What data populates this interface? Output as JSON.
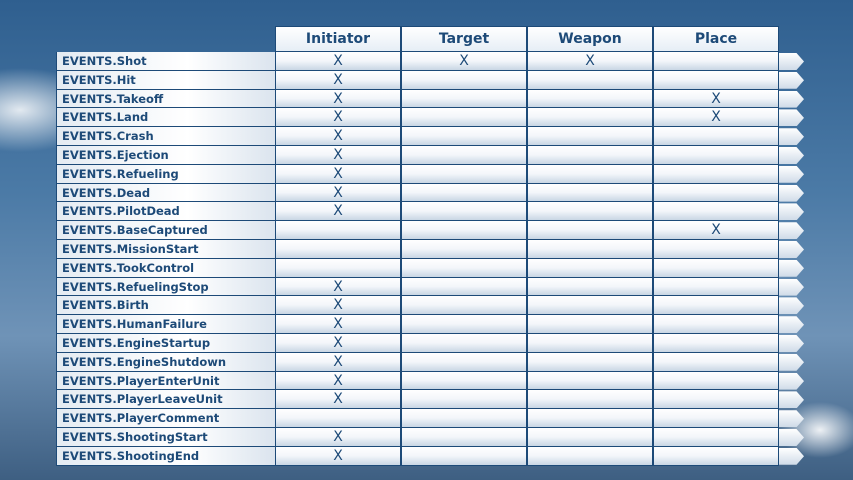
{
  "columns": [
    "Initiator",
    "Target",
    "Weapon",
    "Place"
  ],
  "mark": "X",
  "rows": [
    {
      "event": "EVENTS.Shot",
      "marks": [
        true,
        true,
        true,
        false
      ]
    },
    {
      "event": "EVENTS.Hit",
      "marks": [
        true,
        false,
        false,
        false
      ]
    },
    {
      "event": "EVENTS.Takeoff",
      "marks": [
        true,
        false,
        false,
        true
      ]
    },
    {
      "event": "EVENTS.Land",
      "marks": [
        true,
        false,
        false,
        true
      ]
    },
    {
      "event": "EVENTS.Crash",
      "marks": [
        true,
        false,
        false,
        false
      ]
    },
    {
      "event": "EVENTS.Ejection",
      "marks": [
        true,
        false,
        false,
        false
      ]
    },
    {
      "event": "EVENTS.Refueling",
      "marks": [
        true,
        false,
        false,
        false
      ]
    },
    {
      "event": "EVENTS.Dead",
      "marks": [
        true,
        false,
        false,
        false
      ]
    },
    {
      "event": "EVENTS.PilotDead",
      "marks": [
        true,
        false,
        false,
        false
      ]
    },
    {
      "event": "EVENTS.BaseCaptured",
      "marks": [
        false,
        false,
        false,
        true
      ]
    },
    {
      "event": "EVENTS.MissionStart",
      "marks": [
        false,
        false,
        false,
        false
      ]
    },
    {
      "event": "EVENTS.TookControl",
      "marks": [
        false,
        false,
        false,
        false
      ]
    },
    {
      "event": "EVENTS.RefuelingStop",
      "marks": [
        true,
        false,
        false,
        false
      ]
    },
    {
      "event": "EVENTS.Birth",
      "marks": [
        true,
        false,
        false,
        false
      ]
    },
    {
      "event": "EVENTS.HumanFailure",
      "marks": [
        true,
        false,
        false,
        false
      ]
    },
    {
      "event": "EVENTS.EngineStartup",
      "marks": [
        true,
        false,
        false,
        false
      ]
    },
    {
      "event": "EVENTS.EngineShutdown",
      "marks": [
        true,
        false,
        false,
        false
      ]
    },
    {
      "event": "EVENTS.PlayerEnterUnit",
      "marks": [
        true,
        false,
        false,
        false
      ]
    },
    {
      "event": "EVENTS.PlayerLeaveUnit",
      "marks": [
        true,
        false,
        false,
        false
      ]
    },
    {
      "event": "EVENTS.PlayerComment",
      "marks": [
        false,
        false,
        false,
        false
      ]
    },
    {
      "event": "EVENTS.ShootingStart",
      "marks": [
        true,
        false,
        false,
        false
      ]
    },
    {
      "event": "EVENTS.ShootingEnd",
      "marks": [
        true,
        false,
        false,
        false
      ]
    }
  ]
}
